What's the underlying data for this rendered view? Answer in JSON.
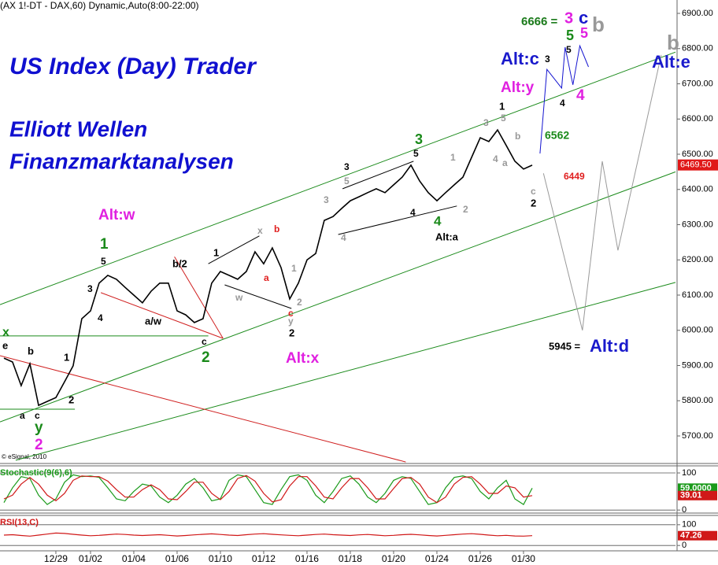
{
  "header": "(AX 1!-DT - DAX,60) Dynamic,Auto(8:00-22:00)",
  "copyright": "© eSignal, 2010",
  "chart_data": [
    {
      "type": "line",
      "titles": [
        "US Index (Day) Trader",
        "Elliott Wellen",
        "Finanzmarktanalysen"
      ],
      "xlim": [
        -0.45,
        77.55
      ],
      "ylim": [
        5624,
        6938
      ],
      "yticks": [
        {
          "value": 5700,
          "label": "5700.00"
        },
        {
          "value": 5800,
          "label": "5800.00"
        },
        {
          "value": 5900,
          "label": "5900.00"
        },
        {
          "value": 6000,
          "label": "6000.00"
        },
        {
          "value": 6100,
          "label": "6100.00"
        },
        {
          "value": 6200,
          "label": "6200.00"
        },
        {
          "value": 6300,
          "label": "6300.00"
        },
        {
          "value": 6400,
          "label": "6400.00"
        },
        {
          "value": 6500,
          "label": "6500.00"
        },
        {
          "value": 6600,
          "label": "6600.00"
        },
        {
          "value": 6700,
          "label": "6700.00"
        },
        {
          "value": 6800,
          "label": "6800.00"
        },
        {
          "value": 6900,
          "label": "6900.00"
        }
      ],
      "xticks": [
        {
          "value": 6,
          "label": "12/29"
        },
        {
          "value": 10,
          "label": "01/02"
        },
        {
          "value": 15,
          "label": "01/04"
        },
        {
          "value": 20,
          "label": "01/06"
        },
        {
          "value": 25,
          "label": "01/10"
        },
        {
          "value": 30,
          "label": "01/12"
        },
        {
          "value": 35,
          "label": "01/16"
        },
        {
          "value": 40,
          "label": "01/18"
        },
        {
          "value": 45,
          "label": "01/20"
        },
        {
          "value": 50,
          "label": "01/24"
        },
        {
          "value": 55,
          "label": "01/26"
        },
        {
          "value": 60,
          "label": "01/30"
        }
      ],
      "last_label": {
        "value": 6469.5,
        "label": "6469.50"
      },
      "last_color": "#e01818",
      "series": [
        {
          "color": "#1a8a1a",
          "x": [
            -0.45,
            77.55
          ],
          "values": [
            6073,
            6790
          ]
        },
        {
          "color": "#1a8a1a",
          "x": [
            -0.45,
            77.55
          ],
          "values": [
            5740,
            6450
          ]
        },
        {
          "color": "#1a8a1a",
          "x": [
            1.36,
            77.55
          ],
          "values": [
            5631,
            6136
          ]
        },
        {
          "color": "#1a8a1a",
          "x": [
            -0.45,
            23.6
          ],
          "values": [
            5984,
            5984
          ]
        },
        {
          "color": "#1a8a1a",
          "x": [
            -0.45,
            8.2
          ],
          "values": [
            5776,
            5776
          ]
        },
        {
          "color": "#d02020",
          "x": [
            -0.45,
            46.4
          ],
          "values": [
            5928,
            5626
          ]
        },
        {
          "color": "#d02020",
          "x": [
            11.2,
            25.3
          ],
          "values": [
            6107,
            5977
          ]
        },
        {
          "color": "#d02020",
          "x": [
            19.7,
            25.3
          ],
          "values": [
            6209,
            5977
          ]
        },
        {
          "color": "#000000",
          "x": [
            23.6,
            29.5
          ],
          "values": [
            6189,
            6268
          ]
        },
        {
          "color": "#000000",
          "x": [
            25.5,
            33.2
          ],
          "values": [
            6129,
            6062
          ]
        },
        {
          "color": "#000000",
          "x": [
            39.1,
            47.3
          ],
          "values": [
            6402,
            6480
          ]
        },
        {
          "color": "#000000",
          "x": [
            38.6,
            52.3
          ],
          "values": [
            6272,
            6353
          ]
        },
        {
          "color": "#1414d0",
          "x": [
            61.9,
            62.7,
            64.4,
            64.8,
            65.7,
            66.5,
            67.5
          ],
          "values": [
            6502,
            6741,
            6688,
            6804,
            6697,
            6808,
            6748
          ]
        },
        {
          "color": "#999999",
          "x": [
            62.3,
            66.8,
            69.1,
            70.9,
            75.9
          ],
          "values": [
            6446,
            6000,
            6480,
            6227,
            6782
          ]
        },
        {
          "color": "#000000",
          "x": [
            0,
            1,
            2,
            3,
            4,
            5,
            6,
            7,
            8,
            9,
            10,
            11,
            12,
            13,
            14,
            15,
            16,
            17,
            18,
            19,
            20,
            21,
            22,
            23,
            24,
            25,
            26,
            27,
            28,
            29,
            30,
            31,
            32,
            33,
            34,
            35,
            36,
            37,
            38,
            39,
            40,
            41,
            42,
            43,
            44,
            45,
            46,
            47,
            48,
            49,
            50,
            51,
            52,
            53,
            54,
            55,
            56,
            57,
            58,
            59,
            60,
            61
          ],
          "values": [
            5921,
            5910,
            5843,
            5905,
            5787,
            5798,
            5809,
            5854,
            5899,
            6033,
            6055,
            6134,
            6156,
            6145,
            6122,
            6100,
            6078,
            6111,
            6134,
            6134,
            6055,
            6044,
            6022,
            6033,
            6134,
            6167,
            6156,
            6145,
            6167,
            6223,
            6189,
            6234,
            6178,
            6089,
            6134,
            6200,
            6218,
            6312,
            6323,
            6346,
            6368,
            6379,
            6391,
            6402,
            6391,
            6413,
            6435,
            6469,
            6424,
            6391,
            6368,
            6391,
            6413,
            6435,
            6491,
            6547,
            6536,
            6569,
            6525,
            6480,
            6458,
            6469
          ]
        }
      ],
      "annotations": [
        {
          "text": "6666 =",
          "color": "#1a7a1a"
        },
        {
          "text": "3",
          "color": "#e020e0"
        },
        {
          "text": "c",
          "color": "#1a1acc"
        },
        {
          "text": "b",
          "color": "#999999"
        },
        {
          "text": "5",
          "color": "#1a8a1a"
        },
        {
          "text": "5",
          "color": "#e020e0"
        },
        {
          "text": "Alt:c",
          "color": "#1a1acc"
        },
        {
          "text": "3",
          "color": "#000000"
        },
        {
          "text": "5",
          "color": "#000000"
        },
        {
          "text": "Alt:e",
          "color": "#1a1acc"
        },
        {
          "text": "b",
          "color": "#999999"
        },
        {
          "text": "Alt:y",
          "color": "#e020e0"
        },
        {
          "text": "1",
          "color": "#000000"
        },
        {
          "text": "4",
          "color": "#000000"
        },
        {
          "text": "4",
          "color": "#e020e0"
        },
        {
          "text": "6562",
          "color": "#1a8a1a"
        },
        {
          "text": "5",
          "color": "#999999"
        },
        {
          "text": "3",
          "color": "#999999"
        },
        {
          "text": "b",
          "color": "#999999"
        },
        {
          "text": "a",
          "color": "#999999"
        },
        {
          "text": "4",
          "color": "#999999"
        },
        {
          "text": "6449",
          "color": "#e02020"
        },
        {
          "text": "c",
          "color": "#999999"
        },
        {
          "text": "2",
          "color": "#000000"
        },
        {
          "text": "3",
          "color": "#1a8a1a"
        },
        {
          "text": "5",
          "color": "#000000"
        },
        {
          "text": "3",
          "color": "#000000"
        },
        {
          "text": "5",
          "color": "#999999"
        },
        {
          "text": "3",
          "color": "#999999"
        },
        {
          "text": "1",
          "color": "#999999"
        },
        {
          "text": "4",
          "color": "#000000"
        },
        {
          "text": "4",
          "color": "#1a8a1a"
        },
        {
          "text": "2",
          "color": "#999999"
        },
        {
          "text": "Alt:a",
          "color": "#000000"
        },
        {
          "text": "4",
          "color": "#999999"
        },
        {
          "text": "Alt:w",
          "color": "#e020e0"
        },
        {
          "text": "1",
          "color": "#1a8a1a"
        },
        {
          "text": "5",
          "color": "#000000"
        },
        {
          "text": "3",
          "color": "#000000"
        },
        {
          "text": "4",
          "color": "#000000"
        },
        {
          "text": "b/2",
          "color": "#000000"
        },
        {
          "text": "a/w",
          "color": "#000000"
        },
        {
          "text": "c",
          "color": "#000000"
        },
        {
          "text": "2",
          "color": "#1a8a1a"
        },
        {
          "text": "1",
          "color": "#000000"
        },
        {
          "text": "x",
          "color": "#999999"
        },
        {
          "text": "b",
          "color": "#e02020"
        },
        {
          "text": "a",
          "color": "#e02020"
        },
        {
          "text": "w",
          "color": "#999999"
        },
        {
          "text": "1",
          "color": "#999999"
        },
        {
          "text": "2",
          "color": "#999999"
        },
        {
          "text": "c",
          "color": "#e02020"
        },
        {
          "text": "y",
          "color": "#999999"
        },
        {
          "text": "2",
          "color": "#000000"
        },
        {
          "text": "Alt:x",
          "color": "#e020e0"
        },
        {
          "text": "5945 =",
          "color": "#000000"
        },
        {
          "text": "Alt:d",
          "color": "#1a1acc"
        },
        {
          "text": "x",
          "color": "#1a8a1a"
        },
        {
          "text": "e",
          "color": "#000000"
        },
        {
          "text": "b",
          "color": "#000000"
        },
        {
          "text": "1",
          "color": "#000000"
        },
        {
          "text": "a",
          "color": "#000000"
        },
        {
          "text": "c",
          "color": "#000000"
        },
        {
          "text": "y",
          "color": "#1a8a1a"
        },
        {
          "text": "2",
          "color": "#e020e0"
        },
        {
          "text": "2",
          "color": "#000000"
        }
      ]
    },
    {
      "type": "line",
      "title": "Stochastic(9(6),6)",
      "xlim": [
        -0.45,
        77.55
      ],
      "ylim": [
        -6,
        117
      ],
      "yticks": [
        0,
        100
      ],
      "x": [
        0,
        1,
        2,
        3,
        4,
        5,
        6,
        7,
        8,
        9,
        10,
        11,
        12,
        13,
        14,
        15,
        16,
        17,
        18,
        19,
        20,
        21,
        22,
        23,
        24,
        25,
        26,
        27,
        28,
        29,
        30,
        31,
        32,
        33,
        34,
        35,
        36,
        37,
        38,
        39,
        40,
        41,
        42,
        43,
        44,
        45,
        46,
        47,
        48,
        49,
        50,
        51,
        52,
        53,
        54,
        55,
        56,
        57,
        58,
        59,
        60,
        61
      ],
      "series": [
        {
          "color": "#1a9a1a",
          "last_label": "59.0000",
          "values": [
            20,
            60,
            90,
            85,
            40,
            15,
            30,
            75,
            95,
            90,
            92,
            88,
            60,
            30,
            25,
            50,
            70,
            65,
            35,
            20,
            40,
            70,
            85,
            60,
            25,
            30,
            80,
            95,
            90,
            55,
            20,
            15,
            55,
            90,
            95,
            80,
            40,
            20,
            50,
            85,
            92,
            70,
            35,
            20,
            45,
            80,
            90,
            85,
            50,
            15,
            20,
            60,
            88,
            92,
            85,
            50,
            30,
            60,
            80,
            30,
            15,
            59
          ]
        },
        {
          "color": "#d01818",
          "last_label": "39.01",
          "values": [
            30,
            40,
            70,
            88,
            70,
            40,
            25,
            45,
            80,
            92,
            90,
            90,
            78,
            55,
            35,
            35,
            55,
            68,
            55,
            30,
            28,
            50,
            75,
            75,
            45,
            28,
            50,
            85,
            93,
            78,
            45,
            22,
            28,
            65,
            90,
            90,
            65,
            35,
            30,
            60,
            85,
            85,
            60,
            30,
            30,
            58,
            85,
            88,
            70,
            35,
            20,
            35,
            70,
            88,
            90,
            70,
            45,
            45,
            65,
            60,
            35,
            39.01
          ]
        }
      ]
    },
    {
      "type": "line",
      "title": "RSI(13,C)",
      "xlim": [
        -0.45,
        77.55
      ],
      "ylim": [
        -22,
        141
      ],
      "yticks": [
        0,
        100
      ],
      "x": [
        0,
        1,
        2,
        3,
        4,
        5,
        6,
        7,
        8,
        9,
        10,
        11,
        12,
        13,
        14,
        15,
        16,
        17,
        18,
        19,
        20,
        21,
        22,
        23,
        24,
        25,
        26,
        27,
        28,
        29,
        30,
        31,
        32,
        33,
        34,
        35,
        36,
        37,
        38,
        39,
        40,
        41,
        42,
        43,
        44,
        45,
        46,
        47,
        48,
        49,
        50,
        51,
        52,
        53,
        54,
        55,
        56,
        57,
        58,
        59,
        60,
        61
      ],
      "series": [
        {
          "color": "#d01818",
          "last_label": "47.26",
          "values": [
            50,
            52,
            48,
            45,
            50,
            55,
            60,
            58,
            54,
            50,
            47,
            49,
            52,
            55,
            53,
            50,
            48,
            50,
            52,
            49,
            46,
            48,
            51,
            54,
            56,
            53,
            50,
            48,
            52,
            55,
            57,
            54,
            51,
            49,
            47,
            50,
            53,
            55,
            52,
            50,
            48,
            51,
            53,
            50,
            47,
            49,
            52,
            54,
            51,
            48,
            46,
            49,
            52,
            55,
            57,
            54,
            50,
            47,
            49,
            46,
            45,
            47.26
          ]
        }
      ]
    }
  ]
}
